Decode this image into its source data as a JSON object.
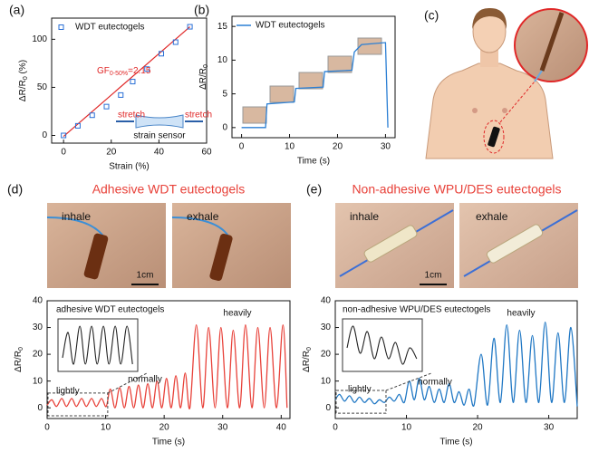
{
  "figure": {
    "panels": [
      "(a)",
      "(b)",
      "(c)",
      "(d)",
      "(e)"
    ],
    "panel_titles": [
      "Adhesive WDT eutectogels",
      "Non-adhesive WPU/DES eutectogels"
    ],
    "photo_labels": [
      [
        "inhale",
        "exhale",
        "1cm"
      ],
      [
        "inhale",
        "exhale",
        "1cm"
      ]
    ]
  },
  "chart_data": [
    {
      "type": "scatter",
      "series": [
        {
          "name": "WDT eutectogels",
          "color": "#2a6fd6",
          "x": [
            0,
            6,
            12,
            18,
            24,
            29,
            35,
            41,
            47,
            53
          ],
          "values": [
            0,
            10,
            21,
            30,
            42,
            56,
            69,
            85,
            97,
            113
          ]
        }
      ],
      "fit": {
        "color": "#e02828",
        "x": [
          0,
          53
        ],
        "values": [
          -1,
          113
        ]
      },
      "annotation": {
        "main": "GF",
        "sub": "0-50%",
        "tail": "=2.15"
      },
      "inset": {
        "left": "stretch",
        "right": "stretch",
        "bottom": "strain sensor"
      },
      "xlabel": "Strain (%)",
      "ylabel": {
        "main": "ΔR/R",
        "sub": "0",
        "tail": " (%)"
      },
      "xlim": [
        -5,
        60
      ],
      "ylim": [
        -8,
        122
      ],
      "xticks": [
        0,
        20,
        40,
        60
      ],
      "yticks": [
        0,
        50,
        100
      ]
    },
    {
      "type": "line",
      "series": [
        {
          "name": "WDT eutectogels",
          "color": "#2b7fd4",
          "x": [
            0,
            5,
            5.3,
            11,
            11.3,
            17,
            17.3,
            23,
            23.5,
            25,
            30,
            30.5
          ],
          "values": [
            0,
            0,
            3.5,
            3.8,
            5.8,
            6,
            8.3,
            8.5,
            11.2,
            12.3,
            12.6,
            0
          ]
        }
      ],
      "xlabel": "Time (s)",
      "ylabel": {
        "main": "ΔR/R",
        "sub": "0"
      },
      "xlim": [
        -2,
        32
      ],
      "ylim": [
        -1.5,
        16.5
      ],
      "xticks": [
        0,
        10,
        20,
        30
      ],
      "yticks": [
        0,
        5,
        10,
        15
      ]
    },
    {
      "type": "line",
      "series": [
        {
          "color": "#e8423a",
          "x": [
            0,
            0.8,
            1.6,
            2.5,
            3.3,
            4.2,
            5,
            5.9,
            6.7,
            7.6,
            8.4,
            9.3,
            10.1,
            10.8,
            11.6,
            12.4,
            13.2,
            14,
            14.8,
            15.6,
            16.4,
            17.2,
            18,
            18.8,
            19.6,
            20.4,
            21.2,
            22,
            22.8,
            23.6,
            24.4,
            25.5,
            26.6,
            27.6,
            28.7,
            29.7,
            30.8,
            31.8,
            32.9,
            33.9,
            35,
            36,
            37.1,
            38.1,
            39.2,
            40.3,
            41
          ],
          "values": [
            1,
            3,
            0.5,
            3.5,
            0.5,
            3.5,
            0.5,
            3.5,
            0.5,
            3.5,
            0.5,
            3.5,
            0.5,
            7,
            0,
            7.5,
            0,
            8,
            0,
            8.5,
            0,
            9,
            0,
            10,
            0,
            11,
            0,
            12,
            0,
            13,
            0,
            31,
            0,
            30,
            0,
            30,
            0,
            29,
            0,
            31,
            0,
            30,
            0,
            30,
            0,
            31,
            0
          ]
        }
      ],
      "annotations": [
        "adhesive WDT eutectogels",
        "lightly",
        "normally",
        "heavily"
      ],
      "xlabel": "Time (s)",
      "ylabel": {
        "main": "ΔR/R",
        "sub": "0"
      },
      "xlim": [
        0,
        41.5
      ],
      "ylim": [
        -4,
        40
      ],
      "xticks": [
        0,
        10,
        20,
        30,
        40
      ],
      "yticks": [
        0,
        10,
        20,
        30,
        40
      ]
    },
    {
      "type": "line",
      "series": [
        {
          "color": "#1f77c4",
          "x": [
            0,
            0.6,
            1.3,
            2,
            2.7,
            3.4,
            4.1,
            4.8,
            5.5,
            6.2,
            6.9,
            7.6,
            8.3,
            9,
            9.7,
            10.4,
            11.1,
            11.8,
            12.5,
            13.2,
            13.9,
            14.6,
            15.3,
            16,
            16.7,
            17.4,
            18.1,
            18.8,
            19.5,
            20.5,
            21.4,
            22.3,
            23.2,
            24.1,
            25,
            25.9,
            26.8,
            27.7,
            28.6,
            29.5,
            30.4,
            31.3,
            32.2,
            33.1,
            34
          ],
          "values": [
            3,
            5,
            2.5,
            4.5,
            2,
            4,
            2,
            3.5,
            1.5,
            3,
            2,
            4,
            2.5,
            5,
            2,
            10,
            3,
            11,
            3,
            8,
            2,
            7,
            2,
            9,
            2,
            6,
            1,
            7,
            1,
            20,
            1,
            26,
            2,
            31,
            2,
            29,
            2,
            27,
            2,
            32,
            2,
            28,
            2,
            30,
            0.5
          ]
        }
      ],
      "annotations": [
        "non-adhesive WPU/DES eutectogels",
        "lightly",
        "normally",
        "heavily"
      ],
      "xlabel": "Time (s)",
      "ylabel": {
        "main": "ΔR/R",
        "sub": "0"
      },
      "xlim": [
        0,
        34
      ],
      "ylim": [
        -4,
        40
      ],
      "xticks": [
        0,
        10,
        20,
        30
      ],
      "yticks": [
        0,
        10,
        20,
        30,
        40
      ]
    }
  ]
}
